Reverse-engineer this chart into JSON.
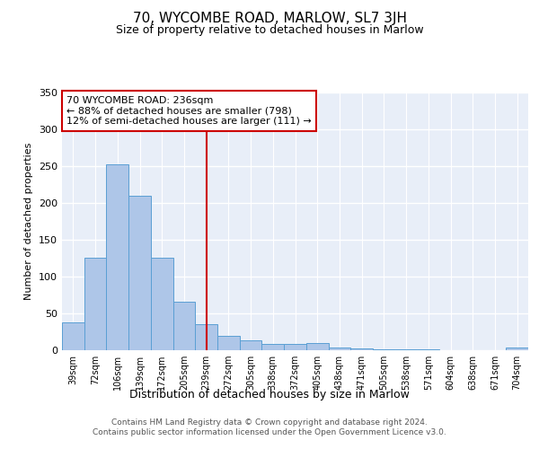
{
  "title": "70, WYCOMBE ROAD, MARLOW, SL7 3JH",
  "subtitle": "Size of property relative to detached houses in Marlow",
  "xlabel": "Distribution of detached houses by size in Marlow",
  "ylabel": "Number of detached properties",
  "categories": [
    "39sqm",
    "72sqm",
    "106sqm",
    "139sqm",
    "172sqm",
    "205sqm",
    "239sqm",
    "272sqm",
    "305sqm",
    "338sqm",
    "372sqm",
    "405sqm",
    "438sqm",
    "471sqm",
    "505sqm",
    "538sqm",
    "571sqm",
    "604sqm",
    "638sqm",
    "671sqm",
    "704sqm"
  ],
  "values": [
    38,
    125,
    252,
    210,
    125,
    66,
    35,
    20,
    14,
    8,
    9,
    10,
    4,
    2,
    1,
    1,
    1,
    0,
    0,
    0,
    4
  ],
  "bar_color": "#aec6e8",
  "bar_edge_color": "#5a9fd4",
  "vline_x": 6.0,
  "vline_color": "#cc0000",
  "annotation_line1": "70 WYCOMBE ROAD: 236sqm",
  "annotation_line2": "← 88% of detached houses are smaller (798)",
  "annotation_line3": "12% of semi-detached houses are larger (111) →",
  "annotation_box_color": "#cc0000",
  "ylim": [
    0,
    350
  ],
  "yticks": [
    0,
    50,
    100,
    150,
    200,
    250,
    300,
    350
  ],
  "footer_line1": "Contains HM Land Registry data © Crown copyright and database right 2024.",
  "footer_line2": "Contains public sector information licensed under the Open Government Licence v3.0.",
  "title_fontsize": 11,
  "subtitle_fontsize": 9,
  "bar_fontsize": 7,
  "ylabel_fontsize": 8,
  "xlabel_fontsize": 9,
  "annotation_fontsize": 8,
  "footer_fontsize": 6.5,
  "bg_color": "#e8eef8",
  "plot_bg_color": "#e8eef8"
}
